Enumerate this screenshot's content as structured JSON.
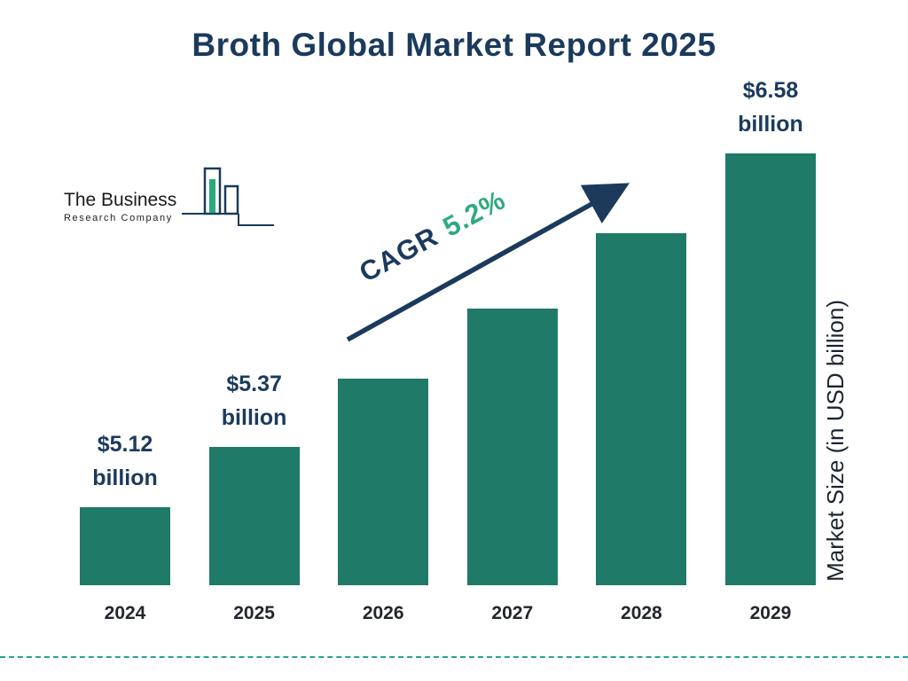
{
  "page": {
    "title": "Broth Global Market Report 2025"
  },
  "logo": {
    "line1": "The Business",
    "line2": "Research Company"
  },
  "annotation": {
    "cagr_label": "CAGR",
    "cagr_value": "5.2%"
  },
  "axis": {
    "right_label": "Market Size (in USD billion)"
  },
  "colors": {
    "navy": "#1b3a5c",
    "bar": "#1f7a68",
    "green": "#2faa7d",
    "teal": "#2aa198"
  },
  "chart_data": {
    "type": "bar",
    "title": "Broth Global Market Report 2025",
    "xlabel": "",
    "ylabel": "Market Size (in USD billion)",
    "categories": [
      "2024",
      "2025",
      "2026",
      "2027",
      "2028",
      "2029"
    ],
    "values": [
      5.12,
      5.37,
      5.65,
      5.94,
      6.25,
      6.58
    ],
    "value_labels": [
      [
        "$5.12",
        "billion"
      ],
      [
        "$5.37",
        "billion"
      ],
      null,
      null,
      null,
      [
        "$6.58",
        "billion"
      ]
    ],
    "cagr": "5.2%",
    "ylim": [
      4.8,
      6.7
    ],
    "grid": false,
    "legend": false,
    "bar_color": "#1f7a68"
  }
}
